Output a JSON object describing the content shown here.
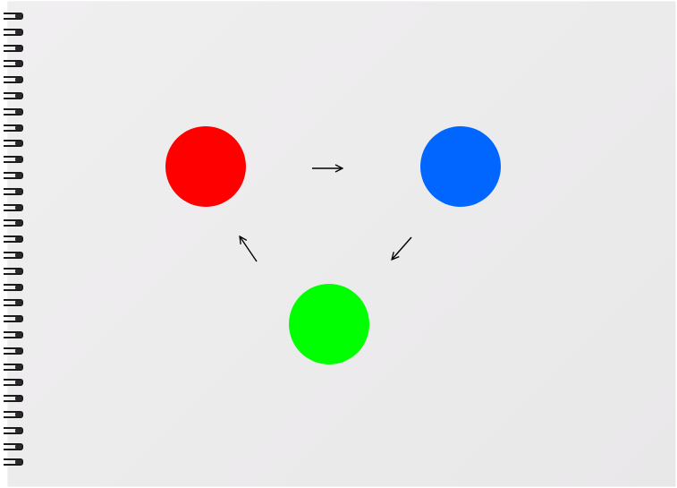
{
  "diagram": {
    "nodes": [
      {
        "id": "red",
        "color": "#ff0000"
      },
      {
        "id": "blue",
        "color": "#0066ff"
      },
      {
        "id": "green",
        "color": "#00ff00"
      }
    ],
    "edges": [
      {
        "from": "red",
        "to": "blue"
      },
      {
        "from": "blue",
        "to": "green"
      },
      {
        "from": "green",
        "to": "red"
      }
    ],
    "arrow_color": "#000000",
    "spiral_binding_rings": 29
  }
}
